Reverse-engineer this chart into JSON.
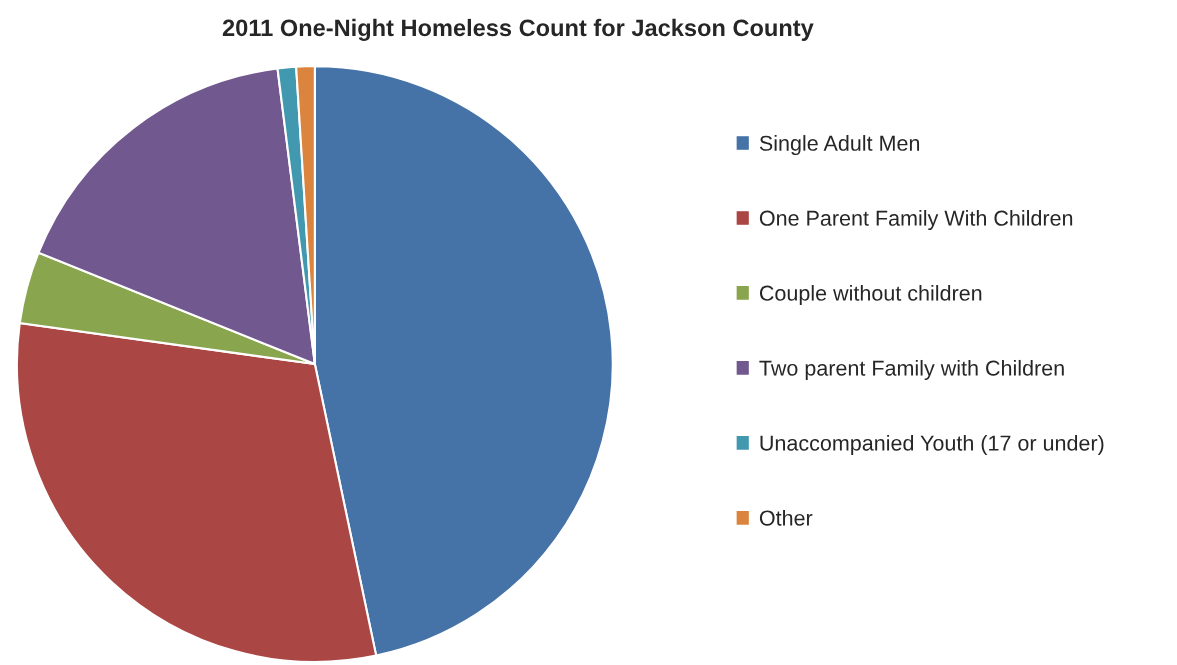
{
  "chart_data": {
    "type": "pie",
    "title": "2011 One-Night Homeless Count for Jackson County",
    "categories": [
      "Single Adult Men",
      "One Parent Family With Children",
      "Couple without children",
      "Two parent Family with Children",
      "Unaccompanied Youth (17 or under)",
      "Other"
    ],
    "values": [
      46.7,
      30.5,
      3.9,
      16.9,
      1.0,
      1.0
    ],
    "colors": [
      "#4572a7",
      "#aa4643",
      "#89a54e",
      "#71588f",
      "#4198af",
      "#db843d"
    ],
    "legend": "right"
  }
}
